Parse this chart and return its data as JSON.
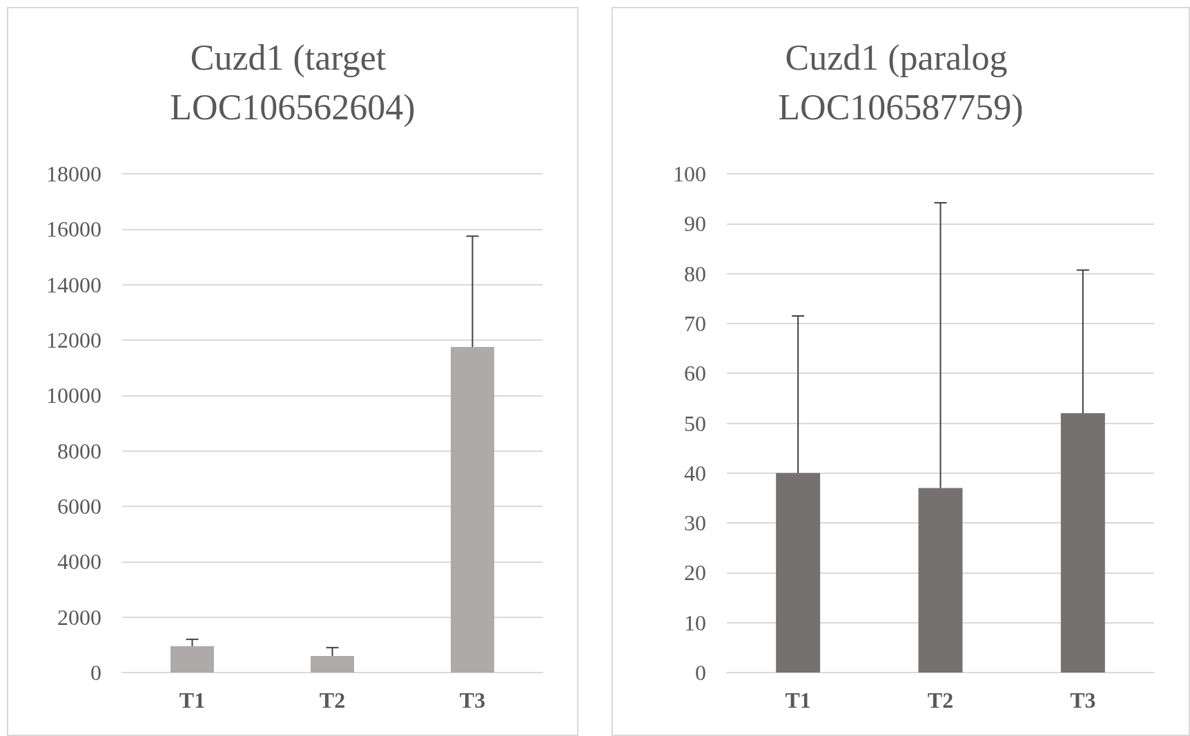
{
  "chart_data": [
    {
      "type": "bar",
      "title": "Cuzd1 (target LOC106562604)",
      "categories": [
        "T1",
        "T2",
        "T3"
      ],
      "values": [
        950,
        600,
        11750
      ],
      "color": "#aeaaaa",
      "errors": [
        [
          950,
          1200
        ],
        [
          600,
          900
        ],
        [
          11750,
          15750
        ]
      ],
      "ylim": [
        0,
        18000
      ],
      "yticks": [
        0,
        2000,
        4000,
        6000,
        8000,
        10000,
        12000,
        14000,
        16000,
        18000
      ],
      "grid": "y"
    },
    {
      "type": "bar",
      "title": "Cuzd1 (paralog LOC106587759)",
      "categories": [
        "T1",
        "T2",
        "T3"
      ],
      "values": [
        40,
        37,
        52
      ],
      "color": "#767171",
      "errors": [
        [
          40,
          71.5
        ],
        [
          37,
          94.2
        ],
        [
          52,
          80.7
        ]
      ],
      "ylim": [
        0,
        100
      ],
      "yticks": [
        0,
        10,
        20,
        30,
        40,
        50,
        60,
        70,
        80,
        90,
        100
      ],
      "grid": "y"
    }
  ]
}
